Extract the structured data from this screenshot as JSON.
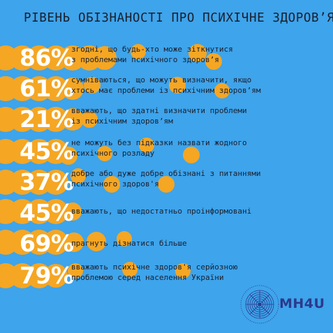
{
  "title": "РІВЕНЬ ОБІЗНАНОСТІ ПРО ПСИХІЧНЕ ЗДОРОВ’Я",
  "colors": {
    "background": "#3ea4eb",
    "accent_circles": "#f5a623",
    "text_dark": "#1a1f2e",
    "percent_text": "#ffffff",
    "logo": "#2b3a8c"
  },
  "stats": [
    {
      "percent": "86%",
      "line1": "згодні, що будь-хто може зіткнутися",
      "line2": "з проблемами психічного здоров’я"
    },
    {
      "percent": "61%",
      "line1": "сумніваються, що можуть визначити, якщо",
      "line2": "хтось має проблеми із психічним здоров’ям"
    },
    {
      "percent": "21%",
      "line1": "вважають, що здатні визначити проблеми",
      "line2": "із психічним здоров’ям"
    },
    {
      "percent": "45%",
      "line1": "не можуть без підказки назвати жодного",
      "line2": "психічного розладу"
    },
    {
      "percent": "37%",
      "line1": "добре або дуже добре обізнані з питаннями",
      "line2": "психічного здоров'я"
    },
    {
      "percent": "45%",
      "line1": "вважають, що недостатньо проінформовані",
      "line2": ""
    },
    {
      "percent": "69%",
      "line1": "прагнуть дізнатися більше",
      "line2": ""
    },
    {
      "percent": "79%",
      "line1": "вважають психічне здоров'я серйозною",
      "line2": "проблемою серед населення України"
    }
  ],
  "logo": {
    "text": "MH4U",
    "icon": "mh4u-emblem-icon"
  }
}
